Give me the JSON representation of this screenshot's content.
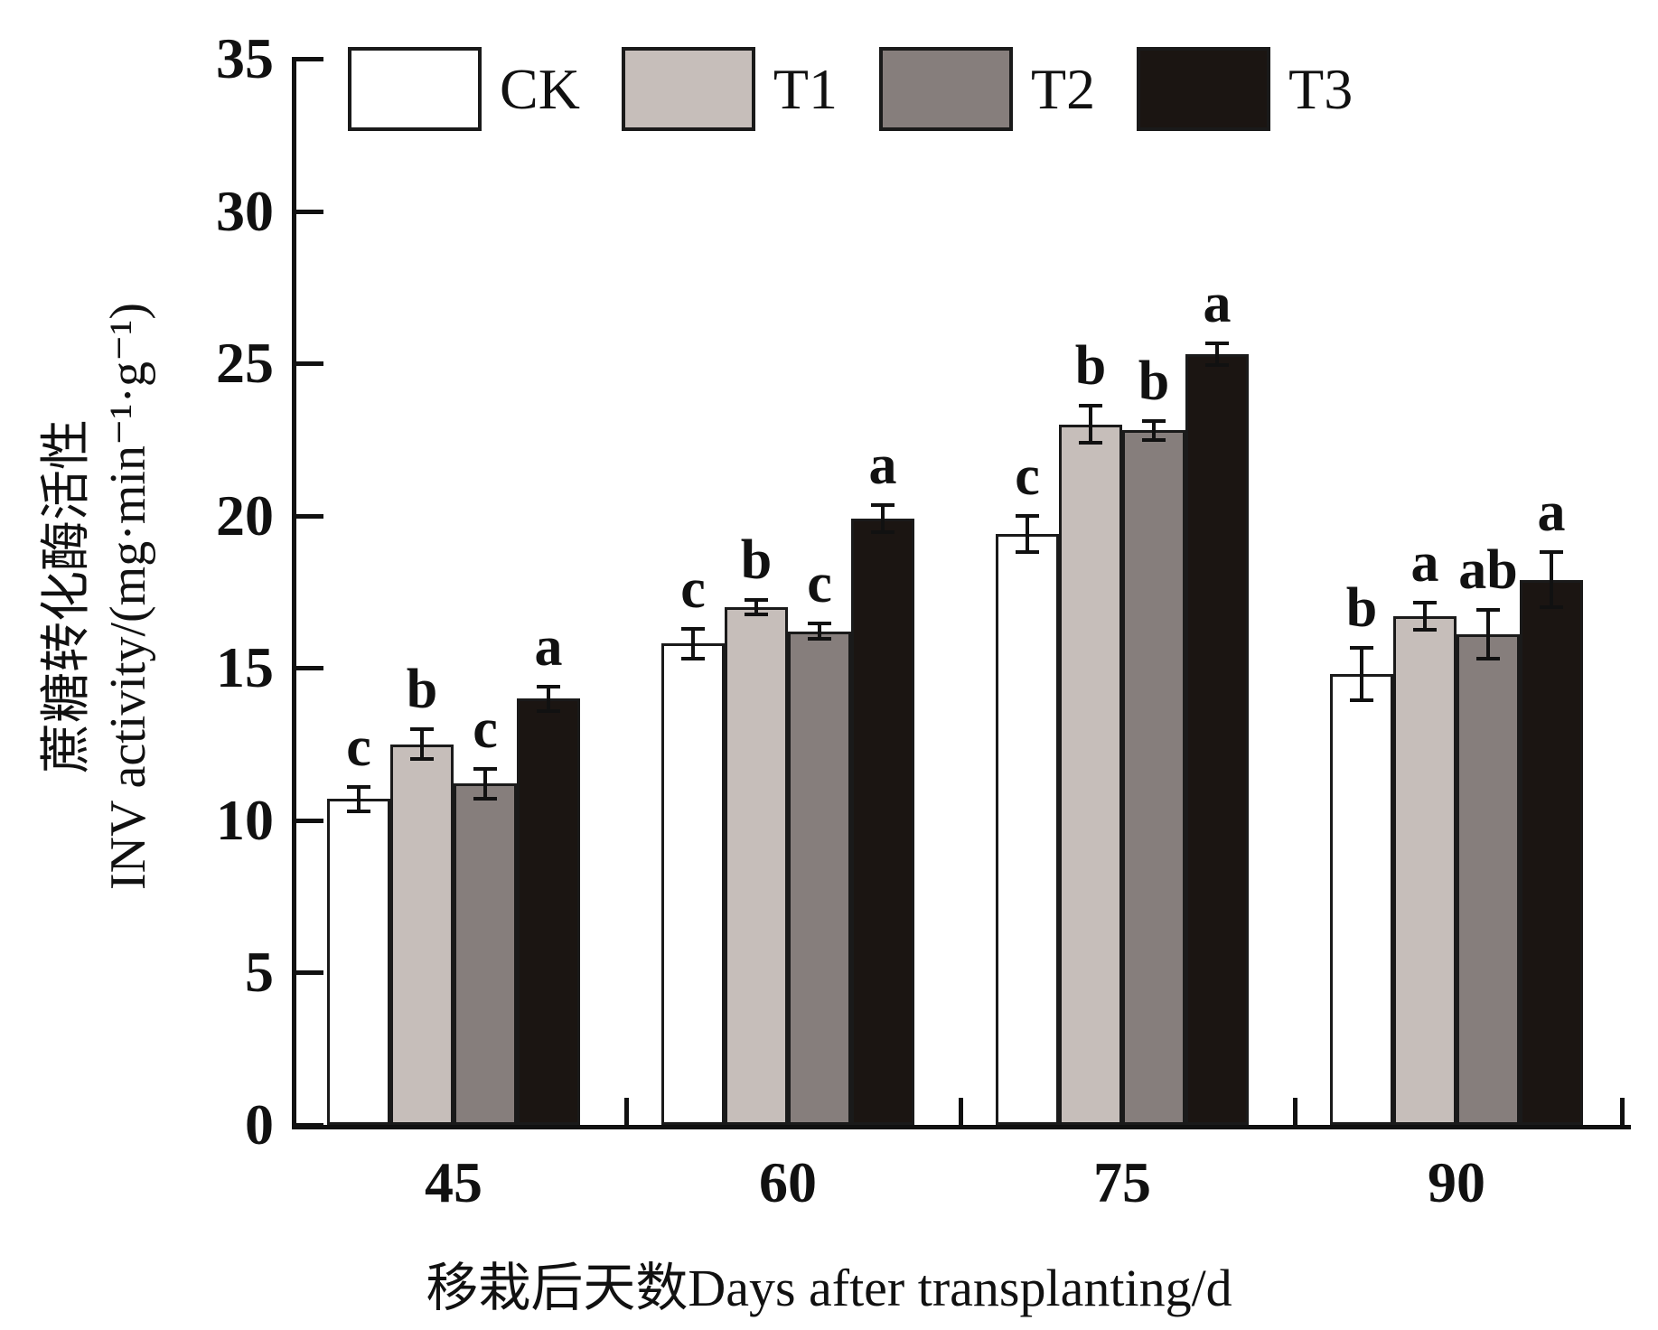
{
  "figure": {
    "xlabel": "移栽后天数Days after transplanting/d",
    "ylabel_zh": "蔗糖转化酶活性",
    "ylabel_en": "INV activity/(mg·min⁻¹·g⁻¹)"
  },
  "chart_data": {
    "type": "bar",
    "title": "",
    "categories": [
      "45",
      "60",
      "75",
      "90"
    ],
    "series": [
      {
        "name": "CK",
        "color": "#ffffff",
        "values": [
          10.7,
          15.8,
          19.4,
          14.8
        ],
        "errors": [
          0.4,
          0.5,
          0.6,
          0.85
        ],
        "sig_letters": [
          "c",
          "c",
          "c",
          "b"
        ]
      },
      {
        "name": "T1",
        "color": "#c6beba",
        "values": [
          12.5,
          17.0,
          23.0,
          16.7
        ],
        "errors": [
          0.5,
          0.25,
          0.6,
          0.45
        ],
        "sig_letters": [
          "b",
          "b",
          "b",
          "a"
        ]
      },
      {
        "name": "T2",
        "color": "#867e7c",
        "values": [
          11.2,
          16.2,
          22.8,
          16.1
        ],
        "errors": [
          0.5,
          0.25,
          0.3,
          0.8
        ],
        "sig_letters": [
          "c",
          "c",
          "b",
          "ab"
        ]
      },
      {
        "name": "T3",
        "color": "#1b1512",
        "values": [
          14.0,
          19.9,
          25.3,
          17.9
        ],
        "errors": [
          0.4,
          0.45,
          0.35,
          0.9
        ],
        "sig_letters": [
          "a",
          "a",
          "a",
          "a"
        ]
      }
    ],
    "xlabel": "移栽后天数Days after transplanting/d",
    "ylabel": "蔗糖转化酶活性 INV activity/(mg·min⁻¹·g⁻¹)",
    "ylim": [
      0,
      35
    ],
    "yticks": [
      0,
      5,
      10,
      15,
      20,
      25,
      30,
      35
    ],
    "legend_position": "top",
    "grid": false,
    "bar_border_color": "#1a1a1a",
    "error_bar_color": "#111111",
    "background_color": "#ffffff"
  }
}
